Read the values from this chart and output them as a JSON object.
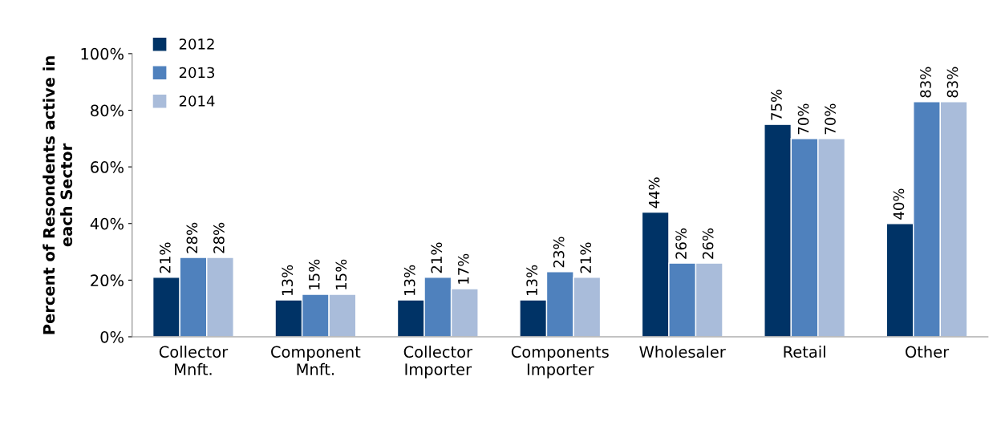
{
  "chart_data": {
    "type": "bar",
    "ylabel": "Percent of Resondents active in\neach Sector",
    "categories": [
      "Collector\nMnft.",
      "Component\nMnft.",
      "Collector\nImporter",
      "Components\nImporter",
      "Wholesaler",
      "Retail",
      "Other"
    ],
    "series": [
      {
        "name": "2012",
        "color": "#003366",
        "values": [
          21,
          13,
          13,
          13,
          44,
          75,
          40
        ]
      },
      {
        "name": "2013",
        "color": "#4f81bd",
        "values": [
          28,
          15,
          21,
          23,
          26,
          70,
          83
        ]
      },
      {
        "name": "2014",
        "color": "#a9bcda",
        "values": [
          28,
          15,
          17,
          21,
          26,
          70,
          83
        ]
      }
    ],
    "ylim": [
      0,
      100
    ],
    "yticks": [
      {
        "value": 0,
        "label": "0%"
      },
      {
        "value": 20,
        "label": "20%"
      },
      {
        "value": 40,
        "label": "40%"
      },
      {
        "value": 60,
        "label": "60%"
      },
      {
        "value": 80,
        "label": "80%"
      },
      {
        "value": 100,
        "label": "100%"
      }
    ],
    "value_labels": [
      [
        "21%",
        "13%",
        "13%",
        "13%",
        "44%",
        "75%",
        "40%"
      ],
      [
        "28%",
        "15%",
        "21%",
        "23%",
        "26%",
        "70%",
        "83%"
      ],
      [
        "28%",
        "15%",
        "17%",
        "21%",
        "26%",
        "70%",
        "83%"
      ]
    ],
    "legend": "top left",
    "grid": false
  }
}
